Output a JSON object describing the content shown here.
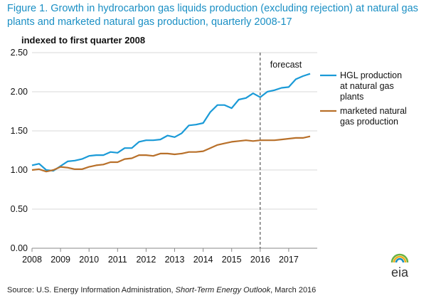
{
  "figure": {
    "title": "Figure 1. Growth in hydrocarbon gas liquids production (excluding rejection) at natural gas plants and marketed natural gas production, quarterly 2008-17",
    "source_prefix": "Source: U.S. Energy Information Administration, ",
    "source_publication": "Short-Term Energy Outlook",
    "source_suffix": ", March 2016",
    "logo_text": "eia"
  },
  "chart_data": {
    "type": "line",
    "ylabel": "indexed to first quarter 2008",
    "xlabel": "",
    "ylim": [
      0,
      2.5
    ],
    "y_ticks": [
      "0.00",
      "0.50",
      "1.00",
      "1.50",
      "2.00",
      "2.50"
    ],
    "x_ticks": [
      "2008",
      "2009",
      "2010",
      "2011",
      "2012",
      "2013",
      "2014",
      "2015",
      "2016",
      "2017"
    ],
    "x_tick_values": [
      2008,
      2009,
      2010,
      2011,
      2012,
      2013,
      2014,
      2015,
      2016,
      2017
    ],
    "xlim": [
      2008,
      2018
    ],
    "x_unit": "quarter",
    "forecast": {
      "label": "forecast",
      "x": 2016
    },
    "legend": {
      "placement": "right"
    },
    "x": [
      2008.0,
      2008.25,
      2008.5,
      2008.75,
      2009.0,
      2009.25,
      2009.5,
      2009.75,
      2010.0,
      2010.25,
      2010.5,
      2010.75,
      2011.0,
      2011.25,
      2011.5,
      2011.75,
      2012.0,
      2012.25,
      2012.5,
      2012.75,
      2013.0,
      2013.25,
      2013.5,
      2013.75,
      2014.0,
      2014.25,
      2014.5,
      2014.75,
      2015.0,
      2015.25,
      2015.5,
      2015.75,
      2016.0,
      2016.25,
      2016.5,
      2016.75,
      2017.0,
      2017.25,
      2017.5,
      2017.75
    ],
    "series": [
      {
        "name": "HGL production at natural gas plants",
        "legend_lines": [
          "HGL production",
          "at natural gas",
          "plants"
        ],
        "color": "#1a9ad7",
        "values": [
          1.06,
          1.08,
          1.0,
          0.99,
          1.05,
          1.11,
          1.12,
          1.14,
          1.18,
          1.19,
          1.19,
          1.23,
          1.22,
          1.28,
          1.28,
          1.36,
          1.38,
          1.38,
          1.39,
          1.44,
          1.42,
          1.47,
          1.57,
          1.58,
          1.6,
          1.74,
          1.83,
          1.83,
          1.79,
          1.9,
          1.92,
          1.98,
          1.93,
          2.0,
          2.02,
          2.05,
          2.06,
          2.16,
          2.2,
          2.23
        ]
      },
      {
        "name": "marketed natural gas production",
        "legend_lines": [
          "marketed natural",
          "gas production"
        ],
        "color": "#b8702a",
        "values": [
          1.0,
          1.01,
          0.98,
          1.0,
          1.04,
          1.03,
          1.01,
          1.01,
          1.04,
          1.06,
          1.07,
          1.1,
          1.1,
          1.14,
          1.15,
          1.19,
          1.19,
          1.18,
          1.21,
          1.21,
          1.2,
          1.21,
          1.23,
          1.23,
          1.24,
          1.28,
          1.32,
          1.34,
          1.36,
          1.37,
          1.38,
          1.37,
          1.38,
          1.38,
          1.38,
          1.39,
          1.4,
          1.41,
          1.41,
          1.43
        ]
      }
    ]
  }
}
